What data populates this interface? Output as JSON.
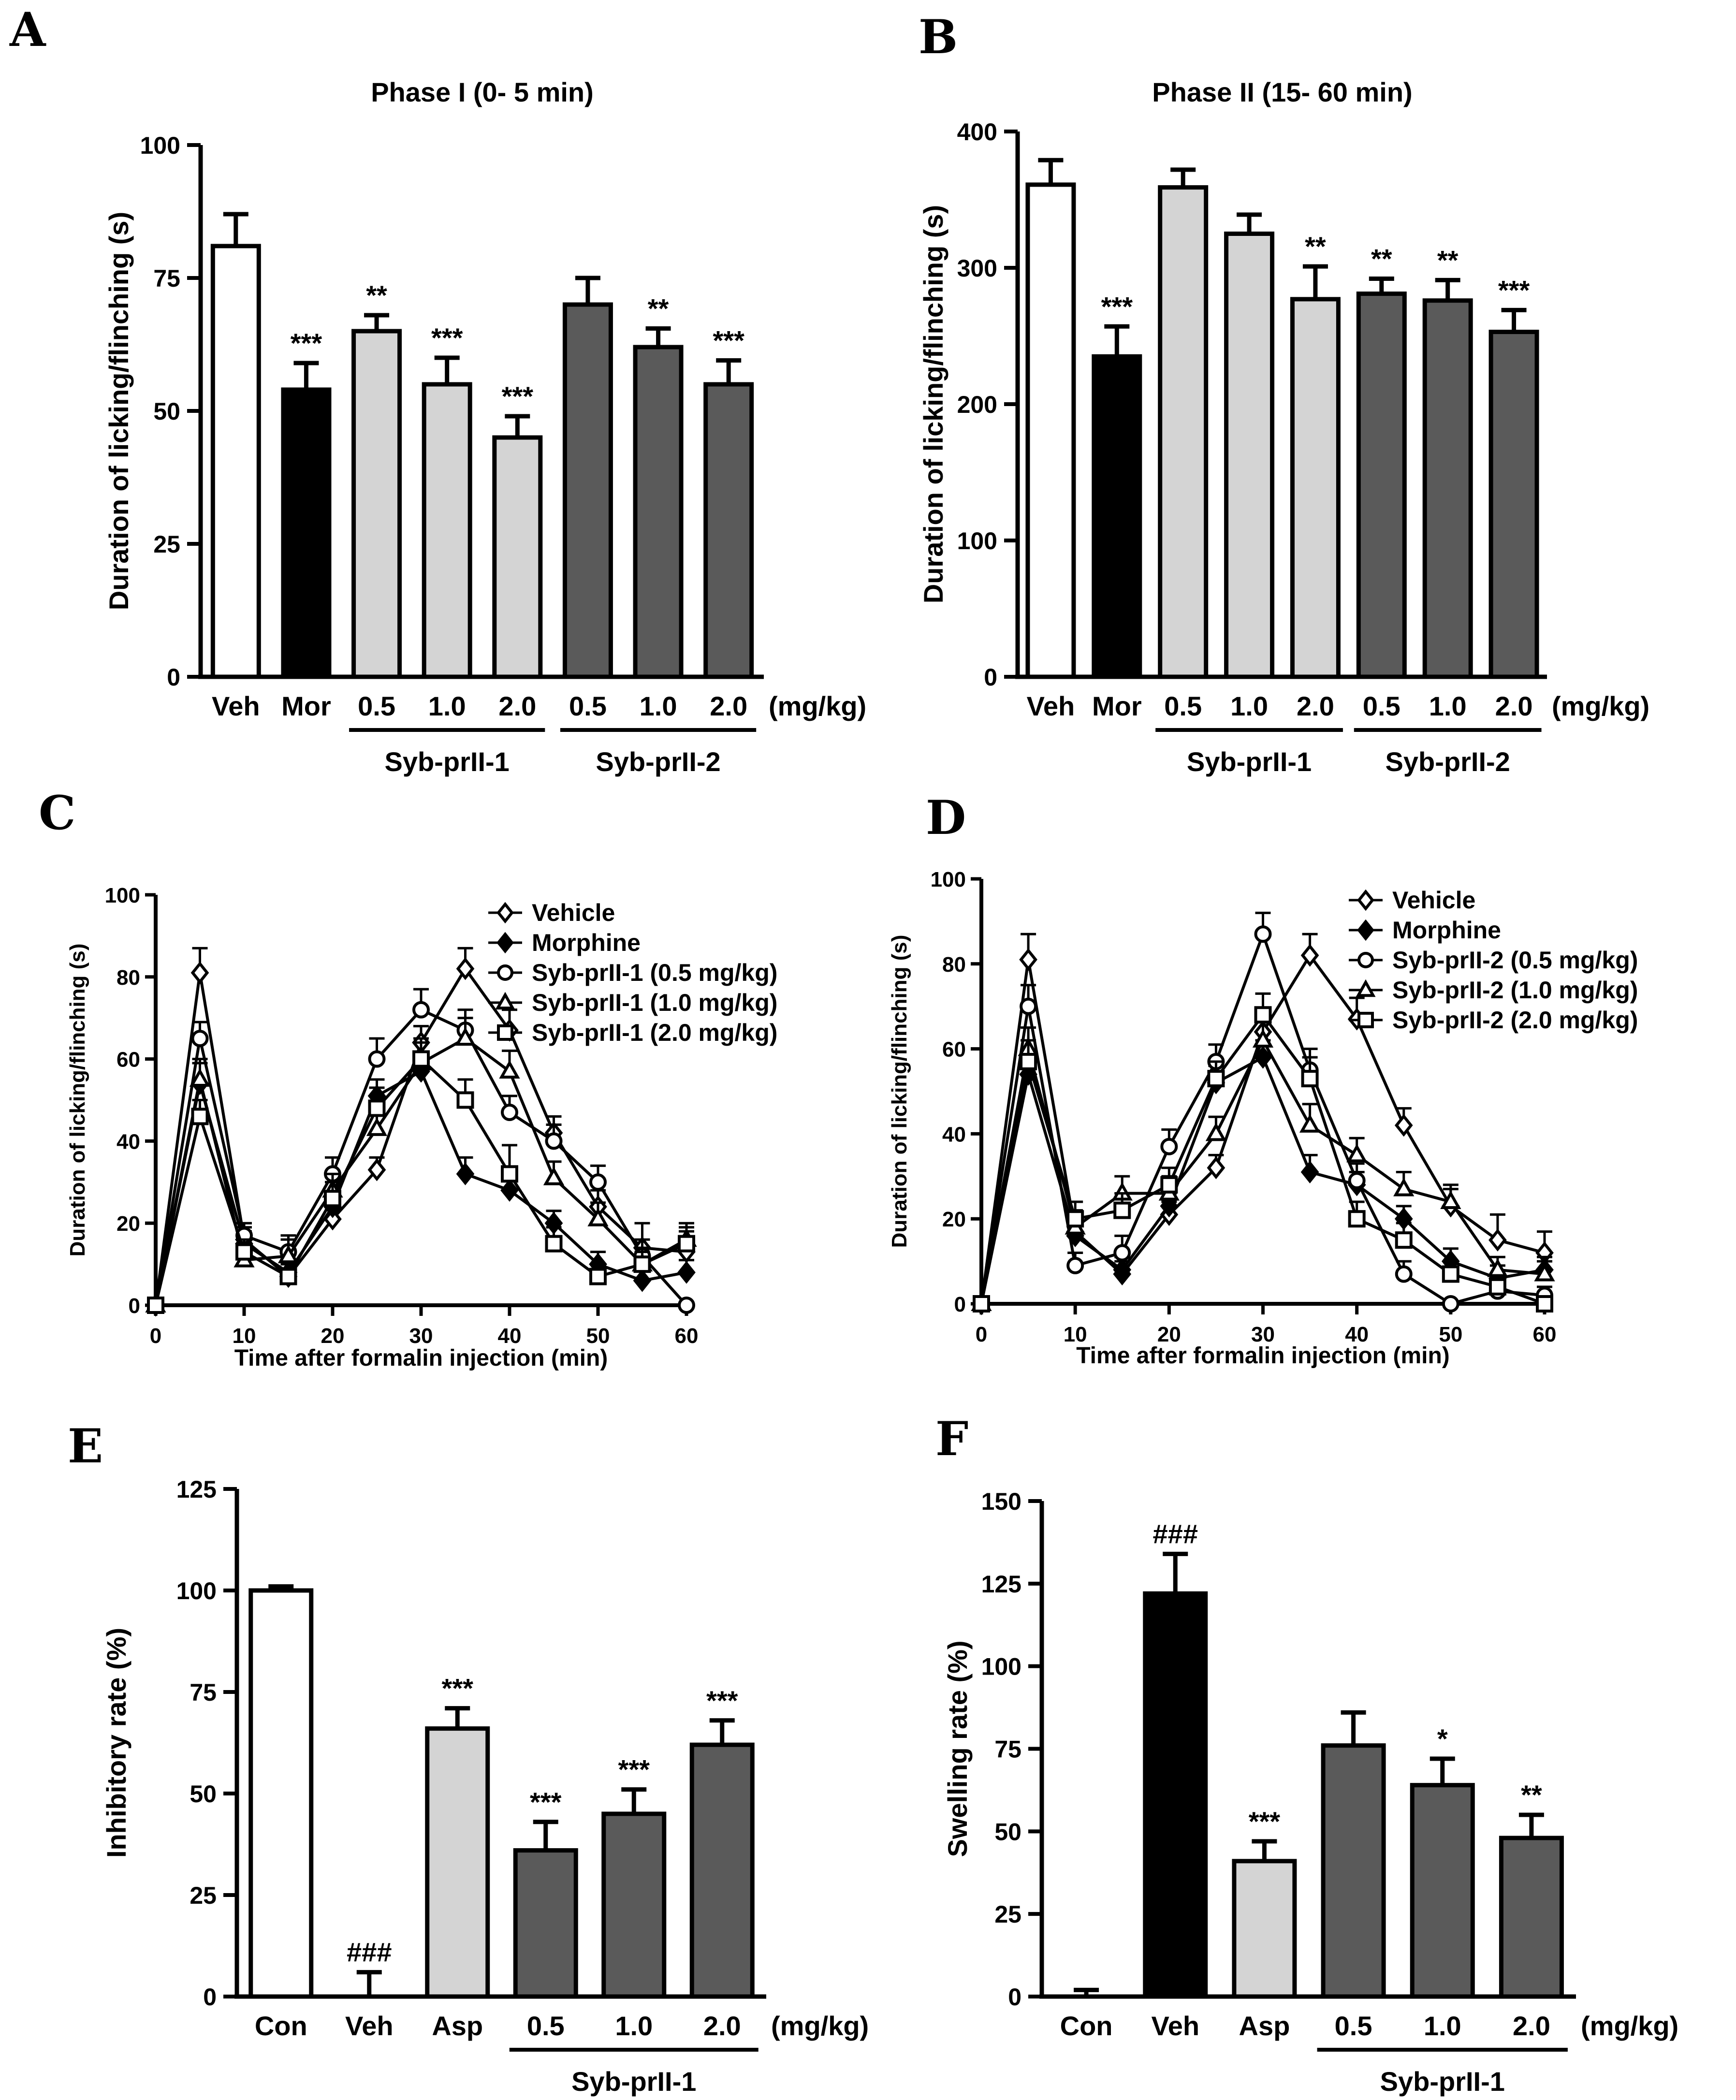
{
  "chart_data": [
    {
      "id": "A",
      "type": "bar",
      "panel": "A",
      "title": "Phase I  (0- 5 min)",
      "ylabel": "Duration of licking/flinching (s)",
      "ylim": [
        0,
        100
      ],
      "yticks": [
        0,
        25,
        50,
        75,
        100
      ],
      "categories": [
        "Veh",
        "Mor",
        "0.5",
        "1.0",
        "2.0",
        "0.5",
        "1.0",
        "2.0"
      ],
      "values": [
        81,
        54,
        65,
        55,
        45,
        70,
        62,
        55
      ],
      "errors": [
        6,
        5,
        3,
        5,
        4,
        5,
        3.5,
        4.5
      ],
      "fill_colors": [
        "#ffffff",
        "#000000",
        "#d4d4d4",
        "#d4d4d4",
        "#d4d4d4",
        "#5a5a5a",
        "#5a5a5a",
        "#5a5a5a"
      ],
      "significance": [
        "",
        "***",
        "**",
        "***",
        "***",
        "",
        "**",
        "***"
      ],
      "unit_label": "(mg/kg)",
      "groups": [
        {
          "label": "Syb-prII-1",
          "from": 2,
          "to": 4
        },
        {
          "label": "Syb-prII-2",
          "from": 5,
          "to": 7
        }
      ]
    },
    {
      "id": "B",
      "type": "bar",
      "panel": "B",
      "title": "Phase II  (15- 60 min)",
      "ylabel": "Duration of licking/flinching (s)",
      "ylim": [
        0,
        400
      ],
      "yticks": [
        0,
        100,
        200,
        300,
        400
      ],
      "categories": [
        "Veh",
        "Mor",
        "0.5",
        "1.0",
        "2.0",
        "0.5",
        "1.0",
        "2.0"
      ],
      "values": [
        361,
        235,
        359,
        325,
        277,
        281,
        276,
        253
      ],
      "errors": [
        18,
        22,
        13,
        14,
        24,
        11,
        15,
        16
      ],
      "fill_colors": [
        "#ffffff",
        "#000000",
        "#d4d4d4",
        "#d4d4d4",
        "#d4d4d4",
        "#5a5a5a",
        "#5a5a5a",
        "#5a5a5a"
      ],
      "significance": [
        "",
        "***",
        "",
        "",
        "**",
        "**",
        "**",
        "***"
      ],
      "unit_label": "(mg/kg)",
      "groups": [
        {
          "label": "Syb-prII-1",
          "from": 2,
          "to": 4
        },
        {
          "label": "Syb-prII-2",
          "from": 5,
          "to": 7
        }
      ]
    },
    {
      "id": "C",
      "type": "line",
      "panel": "C",
      "xlabel": "Time after formalin injection (min)",
      "ylabel": "Duration of licking/flinching (s)",
      "xlim": [
        0,
        60
      ],
      "ylim": [
        0,
        100
      ],
      "xticks": [
        0,
        10,
        20,
        30,
        40,
        50,
        60
      ],
      "yticks": [
        0,
        20,
        40,
        60,
        80,
        100
      ],
      "x": [
        0,
        5,
        10,
        15,
        20,
        25,
        30,
        35,
        40,
        45,
        50,
        55,
        60
      ],
      "series": [
        {
          "name": "Vehicle",
          "marker": "diamond-open",
          "values": [
            0,
            81,
            16,
            7,
            21,
            33,
            64,
            82,
            67,
            42,
            24,
            14,
            13
          ],
          "errors": [
            0,
            6,
            3,
            3,
            3,
            3,
            4,
            5,
            5,
            4,
            4,
            6,
            5
          ]
        },
        {
          "name": "Morphine",
          "marker": "diamond-filled",
          "values": [
            0,
            54,
            15,
            8,
            24,
            51,
            57,
            32,
            28,
            20,
            10,
            6,
            8
          ],
          "errors": [
            0,
            5,
            3,
            3,
            3,
            4,
            4,
            4,
            3,
            3,
            3,
            3,
            3
          ]
        },
        {
          "name": "Syb-prII-1 (0.5 mg/kg)",
          "marker": "circle-open",
          "values": [
            0,
            65,
            17,
            13,
            32,
            60,
            72,
            67,
            47,
            40,
            30,
            12,
            0
          ],
          "errors": [
            0,
            4,
            3,
            4,
            4,
            5,
            5,
            5,
            4,
            4,
            4,
            4,
            0
          ]
        },
        {
          "name": "Syb-prII-1 (1.0 mg/kg)",
          "marker": "triangle-open",
          "values": [
            0,
            55,
            11,
            12,
            28,
            43,
            59,
            65,
            57,
            31,
            21,
            10,
            16
          ],
          "errors": [
            0,
            5,
            3,
            4,
            4,
            5,
            5,
            5,
            5,
            4,
            4,
            4,
            4
          ]
        },
        {
          "name": "Syb-prII-1 (2.0 mg/kg)",
          "marker": "square-open",
          "values": [
            0,
            46,
            13,
            7,
            26,
            48,
            60,
            50,
            32,
            15,
            7,
            10,
            15
          ],
          "errors": [
            0,
            4,
            3,
            3,
            4,
            5,
            5,
            5,
            7,
            4,
            3,
            3,
            4
          ]
        }
      ]
    },
    {
      "id": "D",
      "type": "line",
      "panel": "D",
      "xlabel": "Time after formalin injection (min)",
      "ylabel": "Duration of licking/flinching (s)",
      "xlim": [
        0,
        60
      ],
      "ylim": [
        0,
        100
      ],
      "xticks": [
        0,
        10,
        20,
        30,
        40,
        50,
        60
      ],
      "yticks": [
        0,
        20,
        40,
        60,
        80,
        100
      ],
      "x": [
        0,
        5,
        10,
        15,
        20,
        25,
        30,
        35,
        40,
        45,
        50,
        55,
        60
      ],
      "series": [
        {
          "name": "Vehicle",
          "marker": "diamond-open",
          "values": [
            0,
            81,
            17,
            7,
            21,
            32,
            64,
            82,
            67,
            42,
            23,
            15,
            12
          ],
          "errors": [
            0,
            6,
            3,
            3,
            3,
            3,
            4,
            5,
            5,
            4,
            4,
            6,
            5
          ]
        },
        {
          "name": "Morphine",
          "marker": "diamond-filled",
          "values": [
            0,
            54,
            16,
            8,
            23,
            52,
            58,
            31,
            28,
            20,
            10,
            6,
            8
          ],
          "errors": [
            0,
            5,
            3,
            3,
            3,
            4,
            4,
            4,
            3,
            3,
            3,
            3,
            3
          ]
        },
        {
          "name": "Syb-prII-2 (0.5 mg/kg)",
          "marker": "circle-open",
          "values": [
            0,
            70,
            9,
            12,
            37,
            57,
            87,
            55,
            29,
            7,
            0,
            3,
            2
          ],
          "errors": [
            0,
            5,
            3,
            4,
            4,
            4,
            5,
            5,
            4,
            3,
            0,
            2,
            2
          ]
        },
        {
          "name": "Syb-prII-2 (1.0 mg/kg)",
          "marker": "triangle-open",
          "values": [
            0,
            60,
            18,
            26,
            26,
            40,
            62,
            42,
            35,
            27,
            24,
            8,
            7
          ],
          "errors": [
            0,
            5,
            4,
            4,
            4,
            4,
            5,
            5,
            4,
            4,
            4,
            3,
            3
          ]
        },
        {
          "name": "Syb-prII-2 (2.0 mg/kg)",
          "marker": "square-open",
          "values": [
            0,
            57,
            20,
            22,
            28,
            53,
            68,
            53,
            20,
            15,
            7,
            4,
            0
          ],
          "errors": [
            0,
            5,
            4,
            4,
            4,
            4,
            5,
            5,
            4,
            4,
            3,
            2,
            0
          ]
        }
      ]
    },
    {
      "id": "E",
      "type": "bar",
      "panel": "E",
      "ylabel": "Inhibitory rate (%)",
      "ylim": [
        0,
        125
      ],
      "yticks": [
        0,
        25,
        50,
        75,
        100,
        125
      ],
      "categories": [
        "Con",
        "Veh",
        "Asp",
        "0.5",
        "1.0",
        "2.0"
      ],
      "values": [
        100,
        0,
        66,
        36,
        45,
        62
      ],
      "errors": [
        1,
        6,
        5,
        7,
        6,
        6
      ],
      "fill_colors": [
        "#ffffff",
        "#ffffff",
        "#d4d4d4",
        "#5a5a5a",
        "#5a5a5a",
        "#5a5a5a"
      ],
      "significance": [
        "",
        "###",
        "***",
        "***",
        "***",
        "***"
      ],
      "unit_label": "(mg/kg)",
      "groups": [
        {
          "label": "Syb-prII-1",
          "from": 3,
          "to": 5
        }
      ]
    },
    {
      "id": "F",
      "type": "bar",
      "panel": "F",
      "ylabel": "Swelling rate (%)",
      "ylim": [
        0,
        150
      ],
      "yticks": [
        0,
        25,
        50,
        75,
        100,
        125,
        150
      ],
      "categories": [
        "Con",
        "Veh",
        "Asp",
        "0.5",
        "1.0",
        "2.0"
      ],
      "values": [
        0,
        122,
        41,
        76,
        64,
        48
      ],
      "errors": [
        2,
        12,
        6,
        10,
        8,
        7
      ],
      "fill_colors": [
        "#ffffff",
        "#000000",
        "#d4d4d4",
        "#5a5a5a",
        "#5a5a5a",
        "#5a5a5a"
      ],
      "significance": [
        "",
        "###",
        "***",
        "",
        "*",
        "**"
      ],
      "unit_label": "(mg/kg)",
      "groups": [
        {
          "label": "Syb-prII-1",
          "from": 3,
          "to": 5
        }
      ]
    }
  ]
}
